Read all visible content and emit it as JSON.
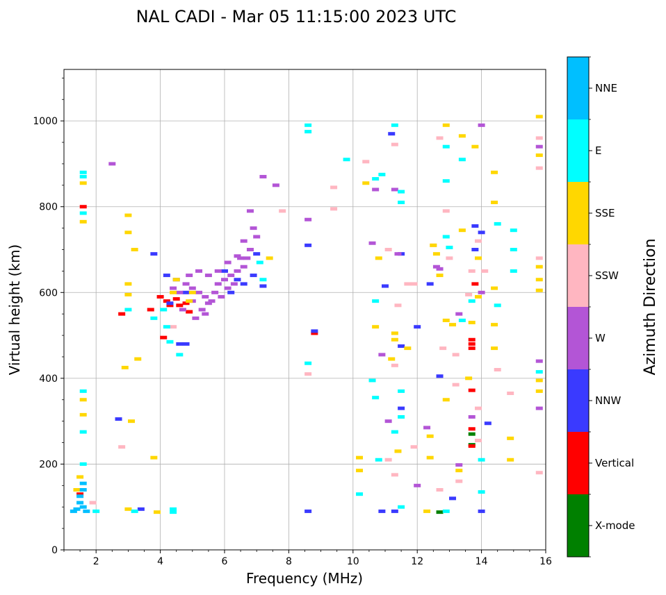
{
  "chart_data": {
    "type": "scatter",
    "title": "NAL CADI - Mar 05 11:15:00 2023 UTC",
    "xlabel": "Frequency (MHz)",
    "ylabel": "Virtual height (km)",
    "xlim": [
      1,
      16
    ],
    "ylim": [
      0,
      1120
    ],
    "x_ticks": [
      2,
      4,
      6,
      8,
      10,
      12,
      14,
      16
    ],
    "y_ticks": [
      0,
      200,
      400,
      600,
      800,
      1000
    ],
    "grid": true,
    "colorbar": {
      "title": "Azimuth Direction",
      "categories": [
        "X-mode",
        "Vertical",
        "NNW",
        "W",
        "SSW",
        "SSE",
        "E",
        "NNE"
      ],
      "colors": [
        "#008000",
        "#ff0000",
        "#3a3aff",
        "#b355d6",
        "#ffb6c1",
        "#ffd700",
        "#00ffff",
        "#00bfff"
      ]
    },
    "series": [
      {
        "name": "X-mode",
        "points": [
          [
            13.7,
            270
          ],
          [
            13.7,
            245
          ],
          [
            12.7,
            88
          ]
        ]
      },
      {
        "name": "Vertical",
        "points": [
          [
            1.6,
            800
          ],
          [
            4.3,
            570
          ],
          [
            4.2,
            580
          ],
          [
            4.0,
            590
          ],
          [
            4.6,
            570
          ],
          [
            4.5,
            585
          ],
          [
            3.7,
            560
          ],
          [
            2.8,
            550
          ],
          [
            4.1,
            495
          ],
          [
            4.9,
            555
          ],
          [
            8.8,
            505
          ],
          [
            13.7,
            490
          ],
          [
            13.7,
            480
          ],
          [
            13.7,
            470
          ],
          [
            13.7,
            282
          ],
          [
            13.7,
            372
          ],
          [
            13.7,
            242
          ],
          [
            13.8,
            620
          ],
          [
            1.5,
            130
          ],
          [
            4.8,
            575
          ]
        ]
      },
      {
        "name": "NNW",
        "points": [
          [
            4.2,
            640
          ],
          [
            4.5,
            630
          ],
          [
            4.8,
            600
          ],
          [
            6.0,
            650
          ],
          [
            6.4,
            630
          ],
          [
            6.6,
            620
          ],
          [
            7.0,
            690
          ],
          [
            7.2,
            615
          ],
          [
            6.9,
            640
          ],
          [
            6.2,
            600
          ],
          [
            4.3,
            575
          ],
          [
            4.6,
            480
          ],
          [
            4.8,
            480
          ],
          [
            3.8,
            690
          ],
          [
            2.7,
            305
          ],
          [
            3.4,
            95
          ],
          [
            8.6,
            710
          ],
          [
            8.6,
            90
          ],
          [
            8.8,
            510
          ],
          [
            10.9,
            90
          ],
          [
            11.3,
            90
          ],
          [
            11.5,
            690
          ],
          [
            11.0,
            615
          ],
          [
            11.5,
            475
          ],
          [
            11.5,
            330
          ],
          [
            12.0,
            520
          ],
          [
            12.7,
            405
          ],
          [
            13.8,
            755
          ],
          [
            13.8,
            700
          ],
          [
            14.0,
            740
          ],
          [
            14.2,
            295
          ],
          [
            13.1,
            120
          ],
          [
            14.0,
            90
          ],
          [
            11.2,
            970
          ],
          [
            12.4,
            620
          ]
        ]
      },
      {
        "name": "W",
        "points": [
          [
            4.8,
            620
          ],
          [
            5.0,
            610
          ],
          [
            5.2,
            600
          ],
          [
            5.4,
            590
          ],
          [
            5.6,
            580
          ],
          [
            5.8,
            620
          ],
          [
            6.0,
            630
          ],
          [
            6.2,
            640
          ],
          [
            6.4,
            650
          ],
          [
            6.6,
            660
          ],
          [
            6.8,
            700
          ],
          [
            7.0,
            730
          ],
          [
            4.6,
            600
          ],
          [
            4.4,
            610
          ],
          [
            4.7,
            560
          ],
          [
            5.1,
            540
          ],
          [
            5.3,
            560
          ],
          [
            5.5,
            575
          ],
          [
            5.7,
            600
          ],
          [
            5.9,
            590
          ],
          [
            6.1,
            610
          ],
          [
            6.3,
            620
          ],
          [
            6.5,
            680
          ],
          [
            6.7,
            680
          ],
          [
            6.9,
            750
          ],
          [
            6.8,
            790
          ],
          [
            4.9,
            640
          ],
          [
            5.2,
            650
          ],
          [
            5.5,
            640
          ],
          [
            5.8,
            650
          ],
          [
            6.1,
            670
          ],
          [
            6.4,
            685
          ],
          [
            6.6,
            720
          ],
          [
            5.0,
            580
          ],
          [
            5.4,
            550
          ],
          [
            7.6,
            850
          ],
          [
            7.2,
            870
          ],
          [
            10.7,
            840
          ],
          [
            10.9,
            455
          ],
          [
            11.3,
            840
          ],
          [
            11.4,
            690
          ],
          [
            11.1,
            300
          ],
          [
            12.3,
            285
          ],
          [
            12.6,
            660
          ],
          [
            12.7,
            655
          ],
          [
            13.3,
            550
          ],
          [
            13.3,
            198
          ],
          [
            13.7,
            310
          ],
          [
            14.0,
            600
          ],
          [
            15.8,
            940
          ],
          [
            15.8,
            440
          ],
          [
            15.8,
            330
          ],
          [
            2.5,
            900
          ],
          [
            8.6,
            770
          ],
          [
            10.6,
            715
          ],
          [
            14.0,
            990
          ],
          [
            12.0,
            150
          ]
        ]
      },
      {
        "name": "SSW",
        "points": [
          [
            1.9,
            110
          ],
          [
            2.8,
            240
          ],
          [
            4.4,
            520
          ],
          [
            7.8,
            790
          ],
          [
            9.4,
            845
          ],
          [
            9.4,
            795
          ],
          [
            10.4,
            905
          ],
          [
            11.3,
            945
          ],
          [
            11.1,
            700
          ],
          [
            11.4,
            570
          ],
          [
            11.7,
            620
          ],
          [
            11.9,
            620
          ],
          [
            11.9,
            240
          ],
          [
            11.3,
            175
          ],
          [
            11.1,
            210
          ],
          [
            12.5,
            710
          ],
          [
            12.7,
            960
          ],
          [
            12.8,
            470
          ],
          [
            12.9,
            790
          ],
          [
            13.0,
            680
          ],
          [
            13.2,
            455
          ],
          [
            13.2,
            385
          ],
          [
            13.3,
            160
          ],
          [
            13.7,
            650
          ],
          [
            13.9,
            330
          ],
          [
            13.9,
            255
          ],
          [
            13.9,
            720
          ],
          [
            14.1,
            650
          ],
          [
            14.5,
            420
          ],
          [
            14.9,
            365
          ],
          [
            15.8,
            680
          ],
          [
            15.8,
            960
          ],
          [
            15.8,
            890
          ],
          [
            15.8,
            180
          ],
          [
            12.7,
            140
          ],
          [
            8.6,
            410
          ],
          [
            11.3,
            430
          ],
          [
            13.6,
            595
          ]
        ]
      },
      {
        "name": "SSE",
        "points": [
          [
            1.6,
            855
          ],
          [
            1.6,
            765
          ],
          [
            1.6,
            350
          ],
          [
            1.6,
            315
          ],
          [
            3.0,
            780
          ],
          [
            3.0,
            740
          ],
          [
            3.0,
            620
          ],
          [
            3.0,
            595
          ],
          [
            3.2,
            700
          ],
          [
            3.3,
            445
          ],
          [
            2.9,
            425
          ],
          [
            3.1,
            300
          ],
          [
            3.0,
            95
          ],
          [
            3.8,
            215
          ],
          [
            3.9,
            88
          ],
          [
            4.9,
            580
          ],
          [
            5.0,
            600
          ],
          [
            7.4,
            680
          ],
          [
            10.2,
            215
          ],
          [
            10.2,
            185
          ],
          [
            10.4,
            855
          ],
          [
            10.7,
            520
          ],
          [
            10.8,
            680
          ],
          [
            11.2,
            445
          ],
          [
            11.3,
            505
          ],
          [
            11.3,
            490
          ],
          [
            11.4,
            230
          ],
          [
            11.7,
            470
          ],
          [
            12.4,
            215
          ],
          [
            12.3,
            90
          ],
          [
            12.4,
            265
          ],
          [
            12.5,
            710
          ],
          [
            12.6,
            690
          ],
          [
            12.7,
            640
          ],
          [
            12.9,
            990
          ],
          [
            12.9,
            535
          ],
          [
            12.9,
            350
          ],
          [
            13.1,
            525
          ],
          [
            13.3,
            185
          ],
          [
            13.4,
            965
          ],
          [
            13.4,
            745
          ],
          [
            13.6,
            400
          ],
          [
            13.7,
            530
          ],
          [
            13.8,
            940
          ],
          [
            13.9,
            680
          ],
          [
            13.9,
            590
          ],
          [
            14.4,
            880
          ],
          [
            14.4,
            810
          ],
          [
            14.4,
            610
          ],
          [
            14.4,
            525
          ],
          [
            14.4,
            470
          ],
          [
            14.9,
            260
          ],
          [
            14.9,
            210
          ],
          [
            15.8,
            1010
          ],
          [
            15.8,
            920
          ],
          [
            15.8,
            660
          ],
          [
            15.8,
            630
          ],
          [
            15.8,
            605
          ],
          [
            15.8,
            395
          ],
          [
            15.8,
            370
          ],
          [
            4.5,
            630
          ],
          [
            4.4,
            600
          ],
          [
            1.5,
            170
          ],
          [
            1.4,
            140
          ]
        ]
      },
      {
        "name": "E",
        "points": [
          [
            1.6,
            880
          ],
          [
            1.6,
            870
          ],
          [
            1.6,
            785
          ],
          [
            1.6,
            370
          ],
          [
            1.6,
            275
          ],
          [
            1.6,
            200
          ],
          [
            4.1,
            560
          ],
          [
            4.3,
            485
          ],
          [
            4.6,
            455
          ],
          [
            4.2,
            520
          ],
          [
            3.8,
            540
          ],
          [
            4.4,
            95
          ],
          [
            4.4,
            88
          ],
          [
            7.2,
            630
          ],
          [
            7.1,
            670
          ],
          [
            8.6,
            990
          ],
          [
            8.6,
            975
          ],
          [
            8.6,
            435
          ],
          [
            9.8,
            910
          ],
          [
            10.2,
            130
          ],
          [
            10.6,
            395
          ],
          [
            10.7,
            865
          ],
          [
            10.7,
            580
          ],
          [
            10.7,
            355
          ],
          [
            10.8,
            210
          ],
          [
            11.3,
            275
          ],
          [
            11.5,
            835
          ],
          [
            11.5,
            810
          ],
          [
            11.5,
            370
          ],
          [
            11.5,
            310
          ],
          [
            11.5,
            100
          ],
          [
            11.3,
            990
          ],
          [
            10.9,
            875
          ],
          [
            12.9,
            940
          ],
          [
            12.9,
            860
          ],
          [
            12.9,
            730
          ],
          [
            12.9,
            90
          ],
          [
            13.0,
            705
          ],
          [
            13.4,
            910
          ],
          [
            13.4,
            535
          ],
          [
            13.7,
            580
          ],
          [
            14.0,
            210
          ],
          [
            14.0,
            135
          ],
          [
            14.5,
            760
          ],
          [
            14.5,
            570
          ],
          [
            15.0,
            745
          ],
          [
            15.0,
            700
          ],
          [
            15.0,
            650
          ],
          [
            15.8,
            415
          ],
          [
            2.0,
            90
          ],
          [
            3.2,
            90
          ],
          [
            3.0,
            560
          ]
        ]
      },
      {
        "name": "NNE",
        "points": [
          [
            1.5,
            110
          ],
          [
            1.6,
            100
          ],
          [
            1.4,
            95
          ],
          [
            1.7,
            90
          ],
          [
            1.5,
            125
          ],
          [
            1.6,
            140
          ],
          [
            1.6,
            155
          ],
          [
            1.3,
            90
          ]
        ]
      }
    ]
  }
}
